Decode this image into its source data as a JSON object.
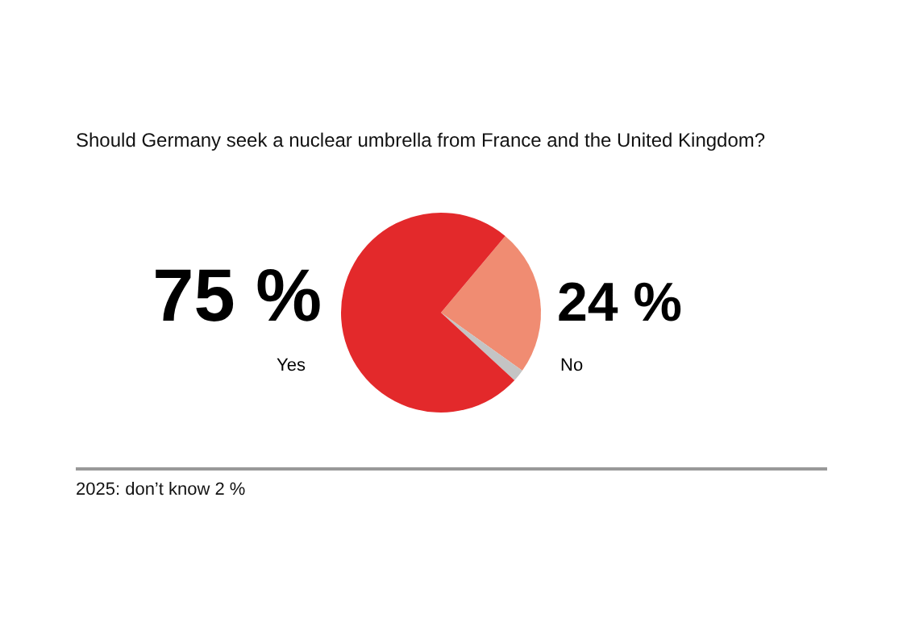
{
  "chart_data": {
    "type": "pie",
    "title": "Should Germany seek a nuclear umbrella from France and the United Kingdom?",
    "categories": [
      "No",
      null,
      "Yes"
    ],
    "values": [
      24,
      2,
      75
    ],
    "colors": [
      "#f08c72",
      "#c4c4c4",
      "#e3292b"
    ],
    "value_labels": [
      "24 %",
      null,
      "75 %"
    ],
    "annotations": [
      "2025: don’t know 2 %"
    ],
    "legend": false
  }
}
